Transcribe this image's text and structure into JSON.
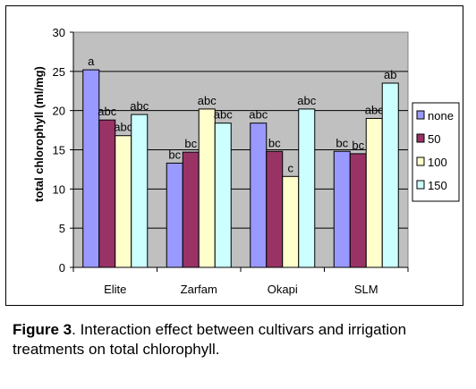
{
  "chart_data": {
    "type": "bar",
    "title": "",
    "xlabel": "",
    "ylabel": "total chlorophyll (ml/mg)",
    "ylim": [
      0,
      30
    ],
    "yticks": [
      0,
      5,
      10,
      15,
      20,
      25,
      30
    ],
    "grid": true,
    "legend_position": "right",
    "categories": [
      "Elite",
      "Zarfam",
      "Okapi",
      "SLM"
    ],
    "series": [
      {
        "name": "none",
        "color": "#9999ff",
        "values": [
          25.2,
          13.3,
          18.4,
          14.8
        ],
        "labels": [
          "a",
          "bc",
          "abc",
          "bc"
        ]
      },
      {
        "name": "50",
        "color": "#993366",
        "values": [
          18.8,
          14.7,
          14.8,
          14.5
        ],
        "labels": [
          "abc",
          "bc",
          "bc",
          "bc"
        ]
      },
      {
        "name": "100",
        "color": "#ffffcc",
        "values": [
          16.8,
          20.2,
          11.6,
          19.0
        ],
        "labels": [
          "abc",
          "abc",
          "c",
          "abc"
        ]
      },
      {
        "name": "150",
        "color": "#ccffff",
        "values": [
          19.5,
          18.4,
          20.2,
          23.5
        ],
        "labels": [
          "abc",
          "abc",
          "abc",
          "ab"
        ]
      }
    ],
    "plot_background": "#c0c0c0"
  },
  "caption": {
    "label": "Figure 3",
    "text": ". Interaction effect between cultivars and irrigation treatments on total chlorophyll."
  }
}
